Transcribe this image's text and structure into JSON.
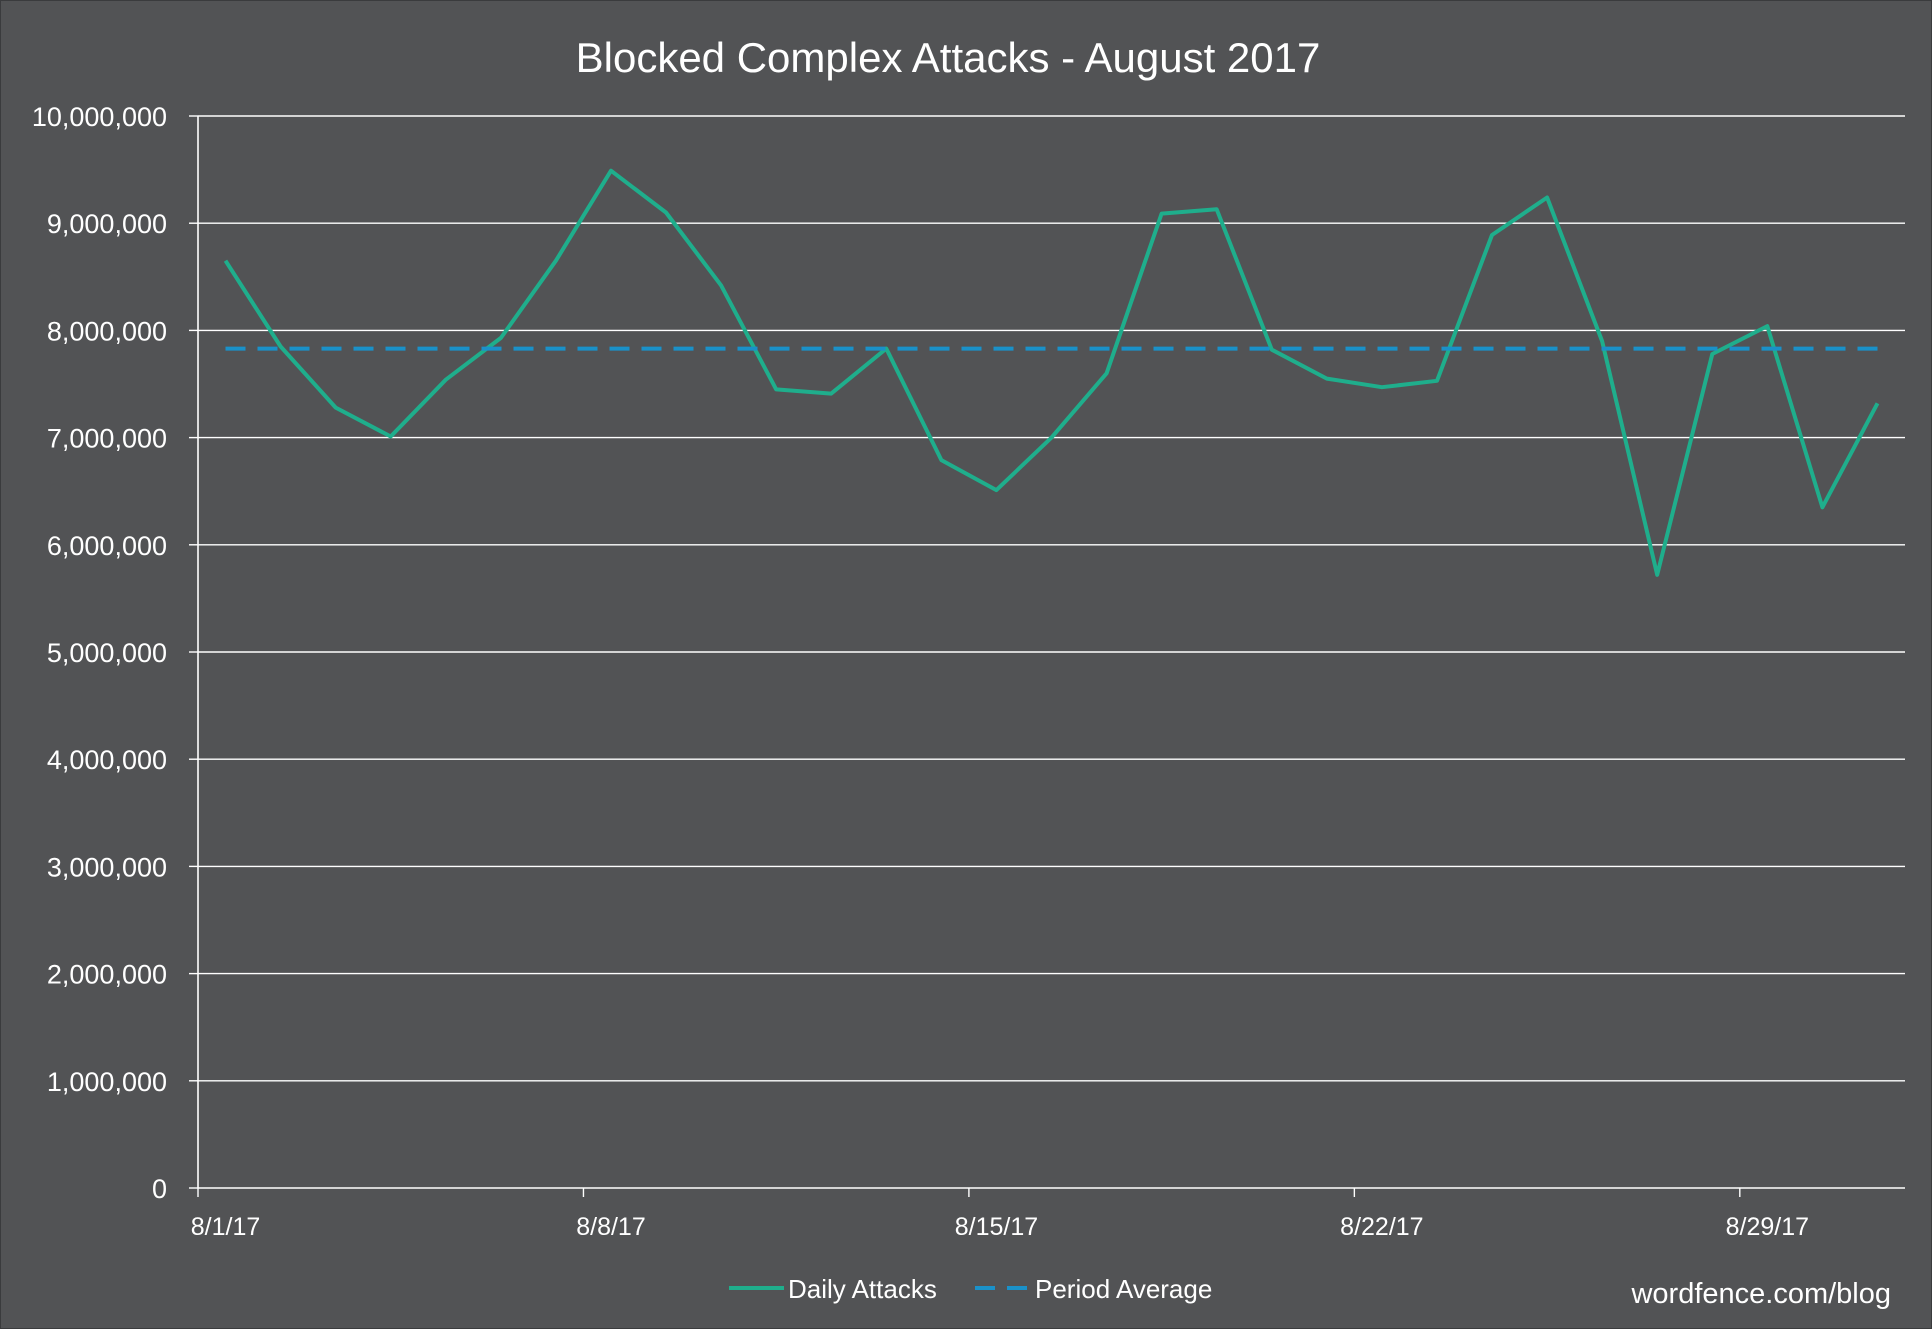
{
  "chart_data": {
    "type": "line",
    "title": "Blocked Complex Attacks - August 2017",
    "xlabel": "",
    "ylabel": "",
    "x_start": "2017-08-01",
    "x_tick_labels": [
      "8/1/17",
      "8/8/17",
      "8/15/17",
      "8/22/17",
      "8/29/17"
    ],
    "y_tick_labels": [
      "0",
      "1,000,000",
      "2,000,000",
      "3,000,000",
      "4,000,000",
      "5,000,000",
      "6,000,000",
      "7,000,000",
      "8,000,000",
      "9,000,000",
      "10,000,000"
    ],
    "ylim": [
      0,
      10000000
    ],
    "grid": true,
    "legend_position": "bottom",
    "series": [
      {
        "name": "Daily Attacks",
        "color": "#1fae8c",
        "style": "solid",
        "values": [
          8650000,
          7850000,
          7280000,
          7010000,
          7540000,
          7930000,
          8650000,
          9490000,
          9100000,
          8420000,
          7450000,
          7410000,
          7830000,
          6790000,
          6510000,
          7000000,
          7600000,
          9090000,
          9130000,
          7820000,
          7550000,
          7470000,
          7530000,
          8890000,
          9240000,
          7900000,
          5720000,
          7780000,
          8040000,
          6350000,
          7320000
        ]
      },
      {
        "name": "Period Average",
        "color": "#1a91c9",
        "style": "dashed",
        "values": [
          7830000,
          7830000,
          7830000,
          7830000,
          7830000,
          7830000,
          7830000,
          7830000,
          7830000,
          7830000,
          7830000,
          7830000,
          7830000,
          7830000,
          7830000,
          7830000,
          7830000,
          7830000,
          7830000,
          7830000,
          7830000,
          7830000,
          7830000,
          7830000,
          7830000,
          7830000,
          7830000,
          7830000,
          7830000,
          7830000,
          7830000
        ]
      }
    ],
    "watermark": "wordfence.com/blog"
  }
}
